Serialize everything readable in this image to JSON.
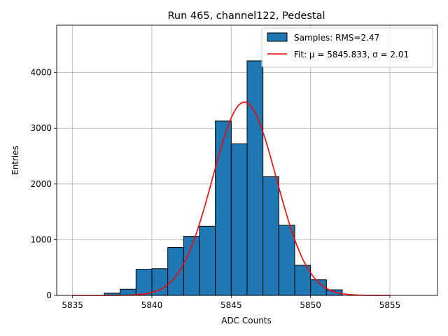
{
  "chart_data": {
    "type": "bar",
    "title": "Run 465, channel122, Pedestal",
    "xlabel": "ADC Counts",
    "ylabel": "Entries",
    "xlim": [
      5834,
      5858
    ],
    "ylim": [
      0,
      4850
    ],
    "x_ticks": [
      5835,
      5840,
      5845,
      5850,
      5855
    ],
    "y_ticks": [
      0,
      1000,
      2000,
      3000,
      4000
    ],
    "grid": true,
    "legend_position": "top-right",
    "histogram": {
      "name": "Samples: RMS=2.47",
      "color": "#1f77b4",
      "bin_width": 1,
      "bins": [
        {
          "x0": 5837,
          "value": 40
        },
        {
          "x0": 5838,
          "value": 110
        },
        {
          "x0": 5839,
          "value": 470
        },
        {
          "x0": 5840,
          "value": 480
        },
        {
          "x0": 5841,
          "value": 860
        },
        {
          "x0": 5842,
          "value": 1060
        },
        {
          "x0": 5843,
          "value": 1240
        },
        {
          "x0": 5844,
          "value": 3130
        },
        {
          "x0": 5845,
          "value": 2720
        },
        {
          "x0": 5846,
          "value": 4210
        },
        {
          "x0": 5847,
          "value": 2130
        },
        {
          "x0": 5848,
          "value": 1260
        },
        {
          "x0": 5849,
          "value": 540
        },
        {
          "x0": 5850,
          "value": 280
        },
        {
          "x0": 5851,
          "value": 100
        }
      ]
    },
    "fit": {
      "name": "Fit: μ = 5845.833, σ = 2.01",
      "color": "#ff0000",
      "mu": 5845.833,
      "sigma": 2.01,
      "amplitude": 3470,
      "x_range": [
        5835,
        5855
      ]
    }
  }
}
